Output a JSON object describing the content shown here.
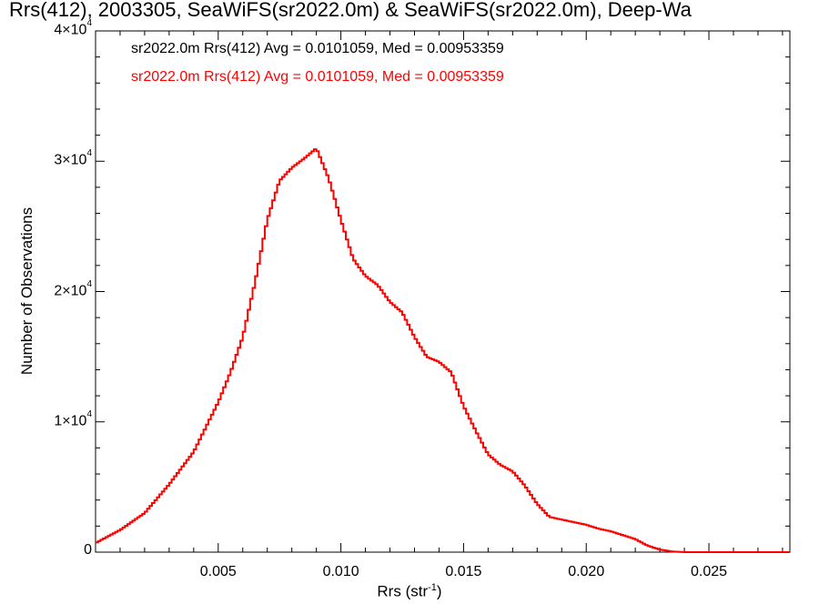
{
  "chart_data": {
    "type": "line",
    "step": true,
    "title": "Rrs(412), 2003305, SeaWiFS(sr2022.0m) & SeaWiFS(sr2022.0m), Deep-Wa",
    "xlabel_base": "Rrs (str",
    "xlabel_exp": "-1",
    "xlabel_close": ")",
    "ylabel": "Number of Observations",
    "xlim": [
      0.0,
      0.0283
    ],
    "ylim": [
      0,
      40000
    ],
    "x_ticks": [
      "0.005",
      "0.010",
      "0.015",
      "0.020",
      "0.025"
    ],
    "y_ticks": [
      {
        "value": 0,
        "label": "0",
        "exp": ""
      },
      {
        "value": 10000,
        "label": "1×10",
        "exp": "4"
      },
      {
        "value": 20000,
        "label": "2×10",
        "exp": "4"
      },
      {
        "value": 30000,
        "label": "3×10",
        "exp": "4"
      },
      {
        "value": 40000,
        "label": "4×10",
        "exp": "4"
      }
    ],
    "annotations": [
      {
        "text": "sr2022.0m Rrs(412) Avg = 0.0101059, Med = 0.00953359",
        "color": "#000000"
      },
      {
        "text": "sr2022.0m Rrs(412) Avg = 0.0101059, Med = 0.00953359",
        "color": "#ff0000"
      }
    ],
    "series": [
      {
        "color": "#ff0000",
        "x": [
          0.0,
          0.001,
          0.002,
          0.003,
          0.004,
          0.005,
          0.0055,
          0.006,
          0.0065,
          0.007,
          0.0075,
          0.008,
          0.0085,
          0.009,
          0.0095,
          0.01,
          0.0105,
          0.011,
          0.0115,
          0.012,
          0.0125,
          0.013,
          0.0135,
          0.014,
          0.0145,
          0.015,
          0.0155,
          0.016,
          0.0165,
          0.017,
          0.0175,
          0.018,
          0.0185,
          0.019,
          0.0195,
          0.02,
          0.0205,
          0.021,
          0.0215,
          0.022,
          0.0225,
          0.023,
          0.0235,
          0.024,
          0.025,
          0.0283
        ],
        "y": [
          700,
          1700,
          3000,
          5200,
          7700,
          11500,
          13800,
          16500,
          20700,
          25500,
          28500,
          29500,
          30200,
          31000,
          28700,
          25500,
          22500,
          21200,
          20500,
          19200,
          18400,
          16500,
          15000,
          14600,
          13800,
          11200,
          9300,
          7500,
          6700,
          6200,
          5100,
          3700,
          2700,
          2500,
          2300,
          2100,
          1800,
          1600,
          1300,
          1000,
          500,
          200,
          50,
          0,
          0,
          0
        ]
      }
    ]
  }
}
